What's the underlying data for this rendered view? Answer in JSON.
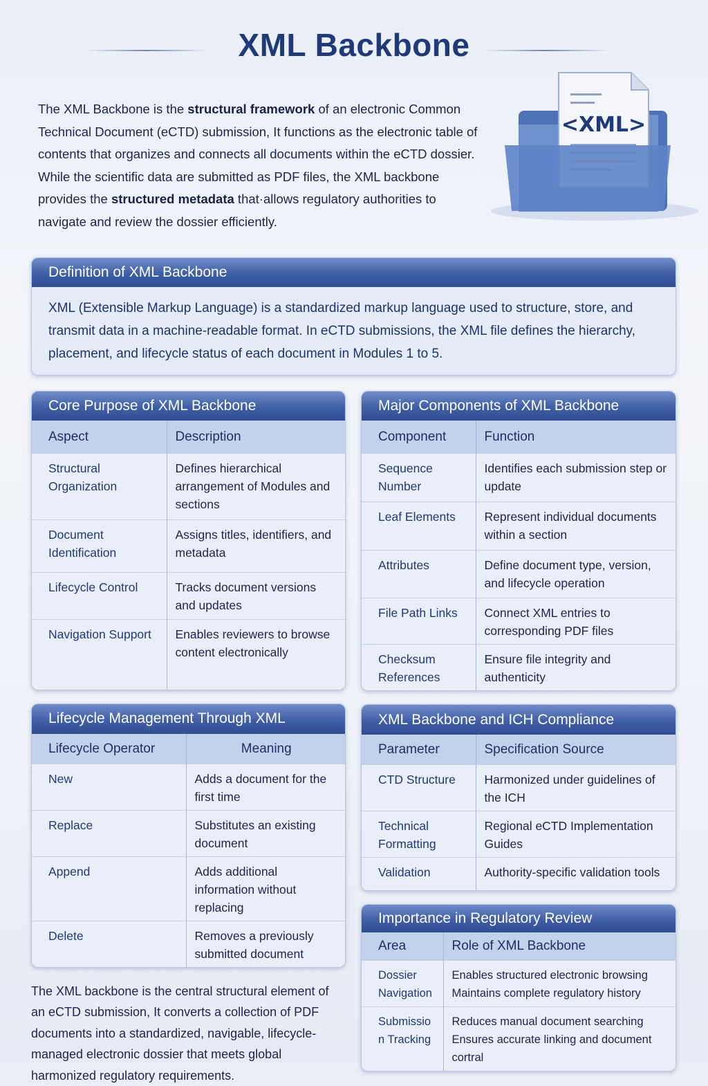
{
  "title": "XML Backbone",
  "intro": {
    "p1": "The XML Backbone is the ",
    "b1": "structural framework",
    "p2": " of an electronic Common Technical Document (eCTD) submission, It functions as the electronic table of contents that organizes and connects all documents within the eCTD dossier. While the scientific data are submitted as PDF files, the XML backbone provides the ",
    "b2": "structured metadata",
    "p3": " that·allows regulatory authorities to navigate and review the dossier efficiently."
  },
  "illustration": {
    "label": "<XML>",
    "icon": "xml-document-folder-icon"
  },
  "definition": {
    "heading": "Definition of XML Backbone",
    "body": "XML (Extensible Markup Language) is a standardized markup language used to structure, store, and transmit data in a machine-readable format. In eCTD submissions, the XML file defines the hierarchy, placement, and lifecycle status of each document in Modules 1 to 5."
  },
  "tables": [
    {
      "id": "core-purpose",
      "heading": "Core Purpose of XML Backbone",
      "columns": [
        "Aspect",
        "Description"
      ],
      "rows": [
        [
          "Structural Organization",
          "Defines hierarchical arrangement of Modules and sections"
        ],
        [
          "Document Identification",
          "Assigns titles, identifiers, and metadata"
        ],
        [
          "Lifecycle Control",
          "Tracks document versions and updates"
        ],
        [
          "Navigation Support",
          "Enables reviewers to browse content electronically"
        ]
      ]
    },
    {
      "id": "major-components",
      "heading": "Major Components of XML Backbone",
      "columns": [
        "Component",
        "Function"
      ],
      "rows": [
        [
          "Sequence Number",
          "Identifies each submission step or update"
        ],
        [
          "Leaf Elements",
          "Represent individual documents within a section"
        ],
        [
          "Attributes",
          "Define document type, version, and lifecycle operation"
        ],
        [
          "File Path Links",
          "Connect XML entries to corresponding PDF files"
        ],
        [
          "Checksum References",
          "Ensure file integrity and authenticity"
        ]
      ]
    },
    {
      "id": "lifecycle-management",
      "heading": "Lifecycle Management Through XML",
      "columns": [
        "Lifecycle Operator",
        "Meaning"
      ],
      "rows": [
        [
          "New",
          "Adds a document for the first time"
        ],
        [
          "Replace",
          "Substitutes an existing document"
        ],
        [
          "Append",
          "Adds additional information without replacing"
        ],
        [
          "Delete",
          "Removes a previously submitted document"
        ]
      ]
    },
    {
      "id": "ich-compliance",
      "heading": "XML Backbone and ICH Compliance",
      "columns": [
        "Parameter",
        "Specification Source"
      ],
      "rows": [
        [
          "CTD Structure",
          "Harmonized under guidelines of the ICH"
        ],
        [
          "Technical Formatting",
          "Regional eCTD Implementation Guides"
        ],
        [
          "Validation",
          "Authority-specific validation tools"
        ]
      ]
    },
    {
      "id": "regulatory-review",
      "heading": "Importance in Regulatory Review",
      "columns": [
        "Area",
        "Role of XML Backbone"
      ],
      "rows": [
        [
          "Dossier Navigation",
          "Enables structured electronic browsing Maintains complete regulatory history"
        ],
        [
          "Submission Tracking",
          "Reduces manual document searching Ensures accurate linking and document cortral"
        ]
      ]
    }
  ],
  "conclusion": "The XML backbone is the central structural element of an eCTD submission, It converts a collection of PDF documents into a standardized, navigable, lifecycle-managed electronic dossier that meets global harmonized regulatory requirements.",
  "colors": {
    "header": "#3f5fa6",
    "title": "#1f3a78",
    "text": "#1b2550"
  }
}
